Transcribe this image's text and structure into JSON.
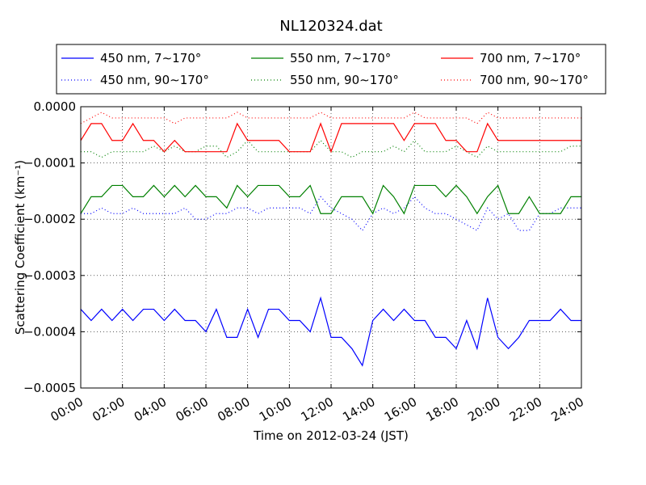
{
  "chart_data": {
    "type": "line",
    "title": "NL120324.dat",
    "xlabel": "Time on 2012-03-24 (JST)",
    "ylabel": "Scattering Coefficient (km⁻¹)",
    "grid": true,
    "legend": "upper center",
    "x": [
      "00:00",
      "00:30",
      "01:00",
      "01:30",
      "02:00",
      "02:30",
      "03:00",
      "03:30",
      "04:00",
      "04:30",
      "05:00",
      "05:30",
      "06:00",
      "06:30",
      "07:00",
      "07:30",
      "08:00",
      "08:30",
      "09:00",
      "09:30",
      "10:00",
      "10:30",
      "11:00",
      "11:30",
      "12:00",
      "12:30",
      "13:00",
      "13:30",
      "14:00",
      "14:30",
      "15:00",
      "15:30",
      "16:00",
      "16:30",
      "17:00",
      "17:30",
      "18:00",
      "18:30",
      "19:00",
      "19:30",
      "20:00",
      "20:30",
      "21:00",
      "21:30",
      "22:00",
      "22:30",
      "23:00",
      "23:30",
      "24:00"
    ],
    "xlim": [
      "00:00",
      "24:00"
    ],
    "xticks": [
      "00:00",
      "02:00",
      "04:00",
      "06:00",
      "08:00",
      "10:00",
      "12:00",
      "14:00",
      "16:00",
      "18:00",
      "20:00",
      "22:00",
      "24:00"
    ],
    "ylim": [
      -0.0005,
      0
    ],
    "yticks": [
      {
        "value": -0.0005,
        "label": "−0.0005"
      },
      {
        "value": -0.0004,
        "label": "−0.0004"
      },
      {
        "value": -0.0003,
        "label": "−0.0003"
      },
      {
        "value": -0.0002,
        "label": "−0.0002"
      },
      {
        "value": -0.0001,
        "label": "−0.0001"
      },
      {
        "value": 0,
        "label": "0.0000"
      }
    ],
    "series": [
      {
        "name": "450 nm, 7∼170°",
        "color": "#0000ff",
        "linestyle": "solid",
        "values": [
          -0.00036,
          -0.00038,
          -0.00036,
          -0.00038,
          -0.00036,
          -0.00038,
          -0.00036,
          -0.00036,
          -0.00038,
          -0.00036,
          -0.00038,
          -0.00038,
          -0.0004,
          -0.00036,
          -0.00041,
          -0.00041,
          -0.00036,
          -0.00041,
          -0.00036,
          -0.00036,
          -0.00038,
          -0.00038,
          -0.0004,
          -0.00034,
          -0.00041,
          -0.00041,
          -0.00043,
          -0.00046,
          -0.00038,
          -0.00036,
          -0.00038,
          -0.00036,
          -0.00038,
          -0.00038,
          -0.00041,
          -0.00041,
          -0.00043,
          -0.00038,
          -0.00043,
          -0.00034,
          -0.00041,
          -0.00043,
          -0.00041,
          -0.00038,
          -0.00038,
          -0.00038,
          -0.00036,
          -0.00038,
          -0.00038
        ]
      },
      {
        "name": "450 nm, 90∼170°",
        "color": "#0000ff",
        "linestyle": "dotted",
        "values": [
          -0.00019,
          -0.00019,
          -0.00018,
          -0.00019,
          -0.00019,
          -0.00018,
          -0.00019,
          -0.00019,
          -0.00019,
          -0.00019,
          -0.00018,
          -0.0002,
          -0.0002,
          -0.00019,
          -0.00019,
          -0.00018,
          -0.00018,
          -0.00019,
          -0.00018,
          -0.00018,
          -0.00018,
          -0.00018,
          -0.00019,
          -0.00016,
          -0.00018,
          -0.00019,
          -0.0002,
          -0.00022,
          -0.00019,
          -0.00018,
          -0.00019,
          -0.00018,
          -0.00016,
          -0.00018,
          -0.00019,
          -0.00019,
          -0.0002,
          -0.00021,
          -0.00022,
          -0.00018,
          -0.0002,
          -0.00019,
          -0.00022,
          -0.00022,
          -0.00019,
          -0.00019,
          -0.00018,
          -0.00018,
          -0.00018
        ]
      },
      {
        "name": "550 nm, 7∼170°",
        "color": "#008000",
        "linestyle": "solid",
        "values": [
          -0.00019,
          -0.00016,
          -0.00016,
          -0.00014,
          -0.00014,
          -0.00016,
          -0.00016,
          -0.00014,
          -0.00016,
          -0.00014,
          -0.00016,
          -0.00014,
          -0.00016,
          -0.00016,
          -0.00018,
          -0.00014,
          -0.00016,
          -0.00014,
          -0.00014,
          -0.00014,
          -0.00016,
          -0.00016,
          -0.00014,
          -0.00019,
          -0.00019,
          -0.00016,
          -0.00016,
          -0.00016,
          -0.00019,
          -0.00014,
          -0.00016,
          -0.00019,
          -0.00014,
          -0.00014,
          -0.00014,
          -0.00016,
          -0.00014,
          -0.00016,
          -0.00019,
          -0.00016,
          -0.00014,
          -0.00019,
          -0.00019,
          -0.00016,
          -0.00019,
          -0.00019,
          -0.00019,
          -0.00016,
          -0.00016
        ]
      },
      {
        "name": "550 nm, 90∼170°",
        "color": "#008000",
        "linestyle": "dotted",
        "values": [
          -8e-05,
          -8e-05,
          -9e-05,
          -8e-05,
          -8e-05,
          -8e-05,
          -8e-05,
          -7e-05,
          -8e-05,
          -7e-05,
          -8e-05,
          -8e-05,
          -7e-05,
          -7e-05,
          -9e-05,
          -8e-05,
          -6e-05,
          -8e-05,
          -8e-05,
          -8e-05,
          -8e-05,
          -8e-05,
          -8e-05,
          -6e-05,
          -8e-05,
          -8e-05,
          -9e-05,
          -8e-05,
          -8e-05,
          -8e-05,
          -7e-05,
          -8e-05,
          -6e-05,
          -8e-05,
          -8e-05,
          -8e-05,
          -7e-05,
          -8e-05,
          -9e-05,
          -7e-05,
          -8e-05,
          -8e-05,
          -8e-05,
          -8e-05,
          -8e-05,
          -8e-05,
          -8e-05,
          -7e-05,
          -7e-05
        ]
      },
      {
        "name": "700 nm, 7∼170°",
        "color": "#ff0000",
        "linestyle": "solid",
        "values": [
          -6e-05,
          -3e-05,
          -3e-05,
          -6e-05,
          -6e-05,
          -3e-05,
          -6e-05,
          -6e-05,
          -8e-05,
          -6e-05,
          -8e-05,
          -8e-05,
          -8e-05,
          -8e-05,
          -8e-05,
          -3e-05,
          -6e-05,
          -6e-05,
          -6e-05,
          -6e-05,
          -8e-05,
          -8e-05,
          -8e-05,
          -3e-05,
          -8e-05,
          -3e-05,
          -3e-05,
          -3e-05,
          -3e-05,
          -3e-05,
          -3e-05,
          -6e-05,
          -3e-05,
          -3e-05,
          -3e-05,
          -6e-05,
          -6e-05,
          -8e-05,
          -8e-05,
          -3e-05,
          -6e-05,
          -6e-05,
          -6e-05,
          -6e-05,
          -6e-05,
          -6e-05,
          -6e-05,
          -6e-05,
          -6e-05
        ]
      },
      {
        "name": "700 nm, 90∼170°",
        "color": "#ff0000",
        "linestyle": "dotted",
        "values": [
          -3e-05,
          -2e-05,
          -1e-05,
          -2e-05,
          -2e-05,
          -2e-05,
          -2e-05,
          -2e-05,
          -2e-05,
          -3e-05,
          -2e-05,
          -2e-05,
          -2e-05,
          -2e-05,
          -2e-05,
          -1e-05,
          -2e-05,
          -2e-05,
          -2e-05,
          -2e-05,
          -2e-05,
          -2e-05,
          -2e-05,
          -1e-05,
          -2e-05,
          -2e-05,
          -2e-05,
          -2e-05,
          -2e-05,
          -2e-05,
          -2e-05,
          -2e-05,
          -1e-05,
          -2e-05,
          -2e-05,
          -2e-05,
          -2e-05,
          -2e-05,
          -3e-05,
          -1e-05,
          -2e-05,
          -2e-05,
          -2e-05,
          -2e-05,
          -2e-05,
          -2e-05,
          -2e-05,
          -2e-05,
          -2e-05
        ]
      }
    ]
  }
}
